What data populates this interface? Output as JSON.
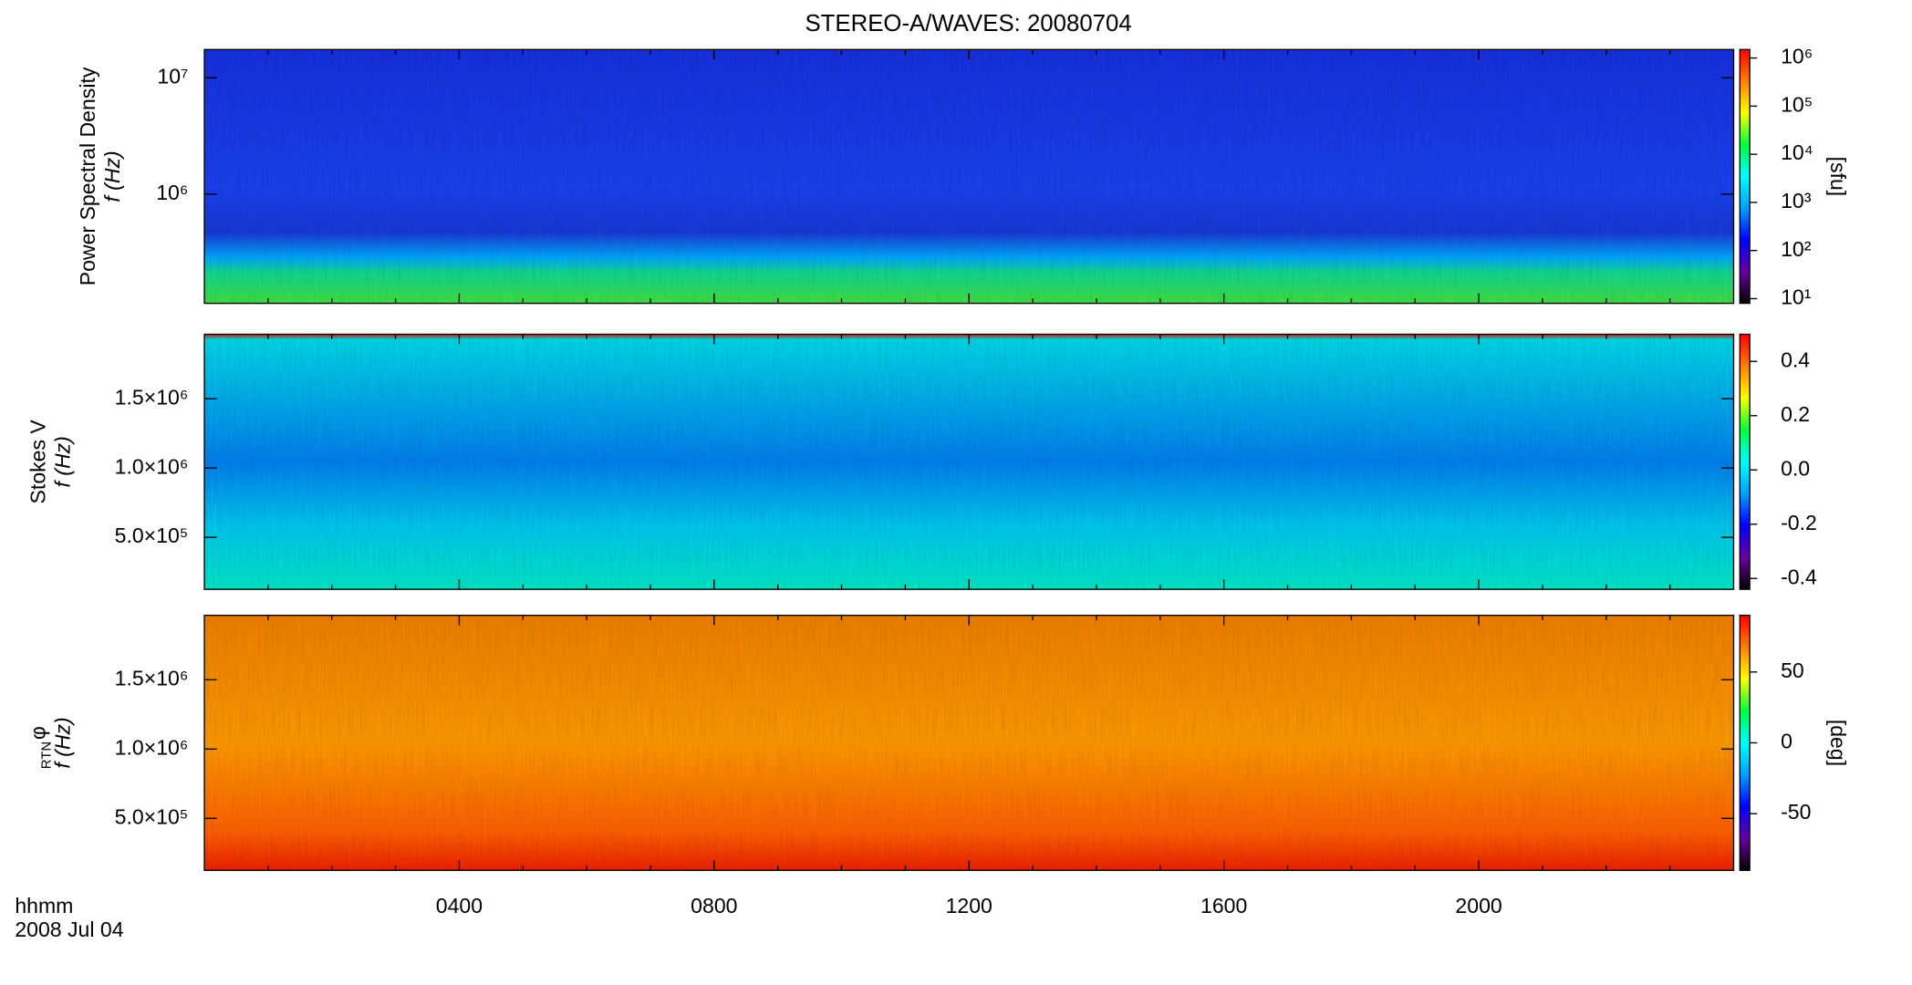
{
  "figure": {
    "title": "STEREO-A/WAVES: 20080704",
    "xlabel": "hhmm",
    "date_label": "2008 Jul 04",
    "xlim": [
      0,
      24
    ],
    "xticks": [
      {
        "value": 4,
        "label": "0400"
      },
      {
        "value": 8,
        "label": "0800"
      },
      {
        "value": 12,
        "label": "1200"
      },
      {
        "value": 16,
        "label": "1600"
      },
      {
        "value": 20,
        "label": "2000"
      }
    ],
    "xminorticks": [
      1,
      2,
      3,
      5,
      6,
      7,
      9,
      10,
      11,
      13,
      14,
      15,
      17,
      18,
      19,
      21,
      22,
      23
    ]
  },
  "chart_data": [
    {
      "type": "spectrogram",
      "ylabel": "Power Spectral Density",
      "ylabel2": "f (Hz)",
      "yscale": "log",
      "ylim": [
        115000,
        17500000
      ],
      "yticks": [
        {
          "value": 1000000,
          "label": "10⁶"
        },
        {
          "value": 10000000,
          "label": "10⁷"
        }
      ],
      "cscale": "log",
      "clim": [
        8,
        1500000
      ],
      "cticks": [
        {
          "value": 10,
          "label": "10¹"
        },
        {
          "value": 100,
          "label": "10²"
        },
        {
          "value": 1000,
          "label": "10³"
        },
        {
          "value": 10000,
          "label": "10⁴"
        },
        {
          "value": 100000,
          "label": "10⁵"
        },
        {
          "value": 1000000,
          "label": "10⁶"
        }
      ],
      "clabel": "[sfu]",
      "colormap": [
        "#000000",
        "#6a00a0",
        "#0000ff",
        "#00a0ff",
        "#00ffff",
        "#00ff40",
        "#ffff00",
        "#ff8000",
        "#ff0000"
      ]
    },
    {
      "type": "spectrogram",
      "ylabel": "Stokes V",
      "ylabel2": "f (Hz)",
      "yscale": "linear",
      "ylim": [
        125000,
        1965000
      ],
      "yticks": [
        {
          "value": 500000,
          "label": "5.0×10⁵"
        },
        {
          "value": 1000000,
          "label": "1.0×10⁶"
        },
        {
          "value": 1500000,
          "label": "1.5×10⁶"
        }
      ],
      "cscale": "linear",
      "clim": [
        -0.44,
        0.5
      ],
      "cticks": [
        -0.4,
        -0.2,
        {
          "value": 0,
          "label": "0.0"
        },
        0.2,
        0.4
      ],
      "colormap": [
        "#000000",
        "#6a00a0",
        "#0000ff",
        "#00a0ff",
        "#00ffff",
        "#00ff40",
        "#ffff00",
        "#ff8000",
        "#ff0000"
      ]
    },
    {
      "type": "spectrogram",
      "ylabel": "φ",
      "ylabel_subscript": "RTN",
      "ylabel2": "f (Hz)",
      "yscale": "linear",
      "ylim": [
        125000,
        1965000
      ],
      "yticks": [
        {
          "value": 500000,
          "label": "5.0×10⁵"
        },
        {
          "value": 1000000,
          "label": "1.0×10⁶"
        },
        {
          "value": 1500000,
          "label": "1.5×10⁶"
        }
      ],
      "cscale": "linear",
      "clim": [
        -90,
        90
      ],
      "cticks": [
        -50,
        0,
        50
      ],
      "clabel": "[deg]",
      "colormap": [
        "#000000",
        "#6a00a0",
        "#0000ff",
        "#00a0ff",
        "#00ffff",
        "#00ff40",
        "#ffff00",
        "#ff8000",
        "#ff0000"
      ]
    }
  ]
}
